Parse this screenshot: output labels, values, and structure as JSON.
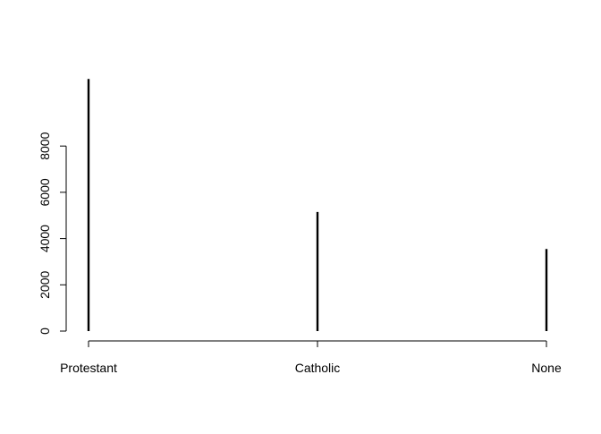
{
  "chart_data": {
    "type": "bar",
    "style": "spike",
    "categories": [
      "Protestant",
      "Catholic",
      "None"
    ],
    "values": [
      10900,
      5150,
      3550
    ],
    "title": "",
    "xlabel": "",
    "ylabel": "",
    "ylim": [
      0,
      11000
    ],
    "yticks": [
      "0",
      "2000",
      "4000",
      "6000",
      "8000"
    ],
    "grid": false,
    "legend": "none",
    "bar_color": "#000000",
    "axis_color": "#000000"
  }
}
